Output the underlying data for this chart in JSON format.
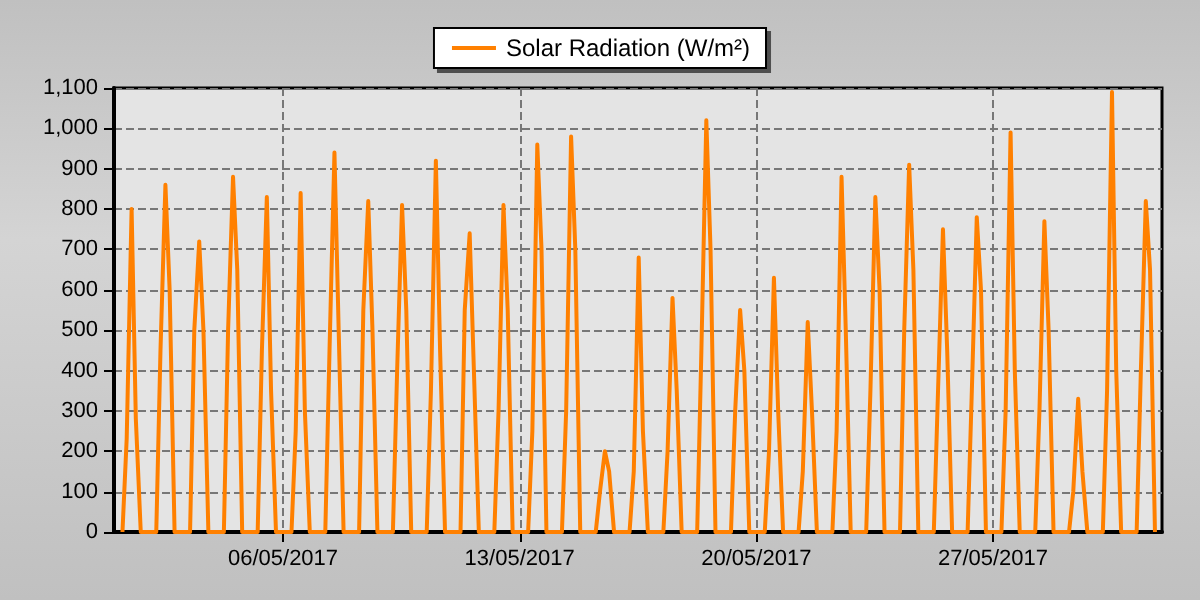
{
  "chart_data": {
    "type": "line",
    "legend": "top",
    "grid": true,
    "marker": "none",
    "xlim": [
      "2017-05-01",
      "2017-06-01"
    ],
    "xticks": [
      {
        "value": "2017-05-06",
        "label": "06/05/2017"
      },
      {
        "value": "2017-05-13",
        "label": "13/05/2017"
      },
      {
        "value": "2017-05-20",
        "label": "20/05/2017"
      },
      {
        "value": "2017-05-27",
        "label": "27/05/2017"
      }
    ],
    "ylim": [
      0,
      1100
    ],
    "yticks": [
      {
        "value": 0,
        "label": "0"
      },
      {
        "value": 100,
        "label": "100"
      },
      {
        "value": 200,
        "label": "200"
      },
      {
        "value": 300,
        "label": "300"
      },
      {
        "value": 400,
        "label": "400"
      },
      {
        "value": 500,
        "label": "500"
      },
      {
        "value": 600,
        "label": "600"
      },
      {
        "value": 700,
        "label": "700"
      },
      {
        "value": 800,
        "label": "800"
      },
      {
        "value": 900,
        "label": "900"
      },
      {
        "value": 1000,
        "label": "1,000"
      },
      {
        "value": 1100,
        "label": "1,100"
      }
    ],
    "series": [
      {
        "name": "Solar Radiation (W/m²)",
        "color": "#ff8000",
        "x": [
          "2017-05-01T06:00",
          "2017-05-01T09:00",
          "2017-05-01T12:30",
          "2017-05-01T15:30",
          "2017-05-01T19:00",
          "2017-05-02T06:00",
          "2017-05-02T09:00",
          "2017-05-02T12:30",
          "2017-05-02T15:30",
          "2017-05-02T19:00",
          "2017-05-03T06:00",
          "2017-05-03T09:00",
          "2017-05-03T12:30",
          "2017-05-03T15:30",
          "2017-05-03T19:00",
          "2017-05-04T06:00",
          "2017-05-04T09:00",
          "2017-05-04T12:30",
          "2017-05-04T15:30",
          "2017-05-04T19:00",
          "2017-05-05T06:00",
          "2017-05-05T09:00",
          "2017-05-05T12:30",
          "2017-05-05T15:30",
          "2017-05-05T19:00",
          "2017-05-06T06:00",
          "2017-05-06T09:00",
          "2017-05-06T12:30",
          "2017-05-06T15:30",
          "2017-05-06T19:00",
          "2017-05-07T06:00",
          "2017-05-07T09:00",
          "2017-05-07T12:30",
          "2017-05-07T15:30",
          "2017-05-07T19:00",
          "2017-05-08T06:00",
          "2017-05-08T09:00",
          "2017-05-08T12:30",
          "2017-05-08T15:30",
          "2017-05-08T19:00",
          "2017-05-09T06:00",
          "2017-05-09T09:00",
          "2017-05-09T12:30",
          "2017-05-09T15:30",
          "2017-05-09T19:00",
          "2017-05-10T06:00",
          "2017-05-10T09:00",
          "2017-05-10T12:30",
          "2017-05-10T15:30",
          "2017-05-10T19:00",
          "2017-05-11T06:00",
          "2017-05-11T09:00",
          "2017-05-11T12:30",
          "2017-05-11T15:30",
          "2017-05-11T19:00",
          "2017-05-12T06:00",
          "2017-05-12T09:00",
          "2017-05-12T12:30",
          "2017-05-12T15:30",
          "2017-05-12T19:00",
          "2017-05-13T06:00",
          "2017-05-13T09:00",
          "2017-05-13T12:30",
          "2017-05-13T15:30",
          "2017-05-13T19:00",
          "2017-05-14T06:00",
          "2017-05-14T09:00",
          "2017-05-14T12:30",
          "2017-05-14T15:30",
          "2017-05-14T19:00",
          "2017-05-15T06:00",
          "2017-05-15T09:00",
          "2017-05-15T12:30",
          "2017-05-15T15:30",
          "2017-05-15T19:00",
          "2017-05-16T06:00",
          "2017-05-16T09:00",
          "2017-05-16T12:30",
          "2017-05-16T15:30",
          "2017-05-16T19:00",
          "2017-05-17T06:00",
          "2017-05-17T09:00",
          "2017-05-17T12:30",
          "2017-05-17T15:30",
          "2017-05-17T19:00",
          "2017-05-18T06:00",
          "2017-05-18T09:00",
          "2017-05-18T12:30",
          "2017-05-18T15:30",
          "2017-05-18T19:00",
          "2017-05-19T06:00",
          "2017-05-19T09:00",
          "2017-05-19T12:30",
          "2017-05-19T15:30",
          "2017-05-19T19:00",
          "2017-05-20T06:00",
          "2017-05-20T09:00",
          "2017-05-20T12:30",
          "2017-05-20T15:30",
          "2017-05-20T19:00",
          "2017-05-21T06:00",
          "2017-05-21T09:00",
          "2017-05-21T12:30",
          "2017-05-21T15:30",
          "2017-05-21T19:00",
          "2017-05-22T06:00",
          "2017-05-22T09:00",
          "2017-05-22T12:30",
          "2017-05-22T15:30",
          "2017-05-22T19:00",
          "2017-05-23T06:00",
          "2017-05-23T09:00",
          "2017-05-23T12:30",
          "2017-05-23T15:30",
          "2017-05-23T19:00",
          "2017-05-24T06:00",
          "2017-05-24T09:00",
          "2017-05-24T12:30",
          "2017-05-24T15:30",
          "2017-05-24T19:00",
          "2017-05-25T06:00",
          "2017-05-25T09:00",
          "2017-05-25T12:30",
          "2017-05-25T15:30",
          "2017-05-25T19:00",
          "2017-05-26T06:00",
          "2017-05-26T09:00",
          "2017-05-26T12:30",
          "2017-05-26T15:30",
          "2017-05-26T19:00",
          "2017-05-27T06:00",
          "2017-05-27T09:00",
          "2017-05-27T12:30",
          "2017-05-27T15:30",
          "2017-05-27T19:00",
          "2017-05-28T06:00",
          "2017-05-28T09:00",
          "2017-05-28T12:30",
          "2017-05-28T15:30",
          "2017-05-28T19:00",
          "2017-05-29T06:00",
          "2017-05-29T09:00",
          "2017-05-29T12:30",
          "2017-05-29T15:30",
          "2017-05-29T19:00",
          "2017-05-30T06:00",
          "2017-05-30T09:00",
          "2017-05-30T12:30",
          "2017-05-30T15:30",
          "2017-05-30T19:00",
          "2017-05-31T06:00",
          "2017-05-31T09:00",
          "2017-05-31T12:30",
          "2017-05-31T15:30",
          "2017-05-31T19:00"
        ],
        "values": [
          0,
          230,
          800,
          280,
          0,
          0,
          450,
          860,
          600,
          0,
          0,
          500,
          720,
          500,
          0,
          0,
          500,
          880,
          650,
          0,
          0,
          450,
          830,
          350,
          0,
          0,
          250,
          840,
          300,
          0,
          0,
          450,
          940,
          500,
          0,
          0,
          550,
          820,
          500,
          0,
          0,
          400,
          810,
          550,
          0,
          0,
          350,
          920,
          450,
          0,
          0,
          550,
          740,
          400,
          0,
          0,
          300,
          810,
          550,
          0,
          0,
          250,
          960,
          700,
          0,
          0,
          300,
          980,
          700,
          0,
          0,
          100,
          200,
          150,
          0,
          0,
          150,
          680,
          250,
          0,
          0,
          200,
          580,
          350,
          0,
          0,
          450,
          1020,
          700,
          0,
          0,
          300,
          550,
          400,
          0,
          0,
          200,
          630,
          300,
          0,
          0,
          150,
          520,
          300,
          0,
          0,
          250,
          880,
          500,
          0,
          0,
          350,
          830,
          600,
          0,
          0,
          500,
          910,
          650,
          0,
          0,
          350,
          750,
          450,
          0,
          0,
          350,
          780,
          600,
          0,
          0,
          300,
          990,
          400,
          0,
          0,
          300,
          770,
          500,
          0,
          0,
          100,
          330,
          150,
          0,
          0,
          350,
          1090,
          400,
          0,
          0,
          400,
          820,
          650,
          0
        ]
      }
    ]
  }
}
